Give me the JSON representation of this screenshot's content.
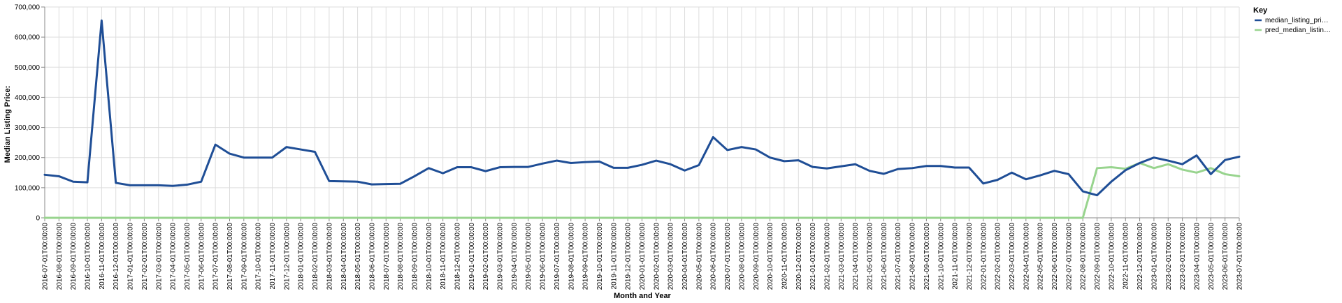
{
  "chart_data": {
    "type": "line",
    "xlabel": "Month and Year",
    "ylabel": "Median Listing Price:",
    "ylim": [
      0,
      700000
    ],
    "y_ticks": [
      "0",
      "100,000",
      "200,000",
      "300,000",
      "400,000",
      "500,000",
      "600,000",
      "700,000"
    ],
    "grid": true,
    "legend": {
      "title": "Key",
      "position": "right",
      "entries": [
        "median_listing_pri…",
        "pred_median_listin…"
      ]
    },
    "categories": [
      "2016-07-01T00:00:00",
      "2016-08-01T00:00:00",
      "2016-09-01T00:00:00",
      "2016-10-01T00:00:00",
      "2016-11-01T00:00:00",
      "2016-12-01T00:00:00",
      "2017-01-01T00:00:00",
      "2017-02-01T00:00:00",
      "2017-03-01T00:00:00",
      "2017-04-01T00:00:00",
      "2017-05-01T00:00:00",
      "2017-06-01T00:00:00",
      "2017-07-01T00:00:00",
      "2017-08-01T00:00:00",
      "2017-09-01T00:00:00",
      "2017-10-01T00:00:00",
      "2017-11-01T00:00:00",
      "2017-12-01T00:00:00",
      "2018-01-01T00:00:00",
      "2018-02-01T00:00:00",
      "2018-03-01T00:00:00",
      "2018-04-01T00:00:00",
      "2018-05-01T00:00:00",
      "2018-06-01T00:00:00",
      "2018-07-01T00:00:00",
      "2018-08-01T00:00:00",
      "2018-09-01T00:00:00",
      "2018-10-01T00:00:00",
      "2018-11-01T00:00:00",
      "2018-12-01T00:00:00",
      "2019-01-01T00:00:00",
      "2019-02-01T00:00:00",
      "2019-03-01T00:00:00",
      "2019-04-01T00:00:00",
      "2019-05-01T00:00:00",
      "2019-06-01T00:00:00",
      "2019-07-01T00:00:00",
      "2019-08-01T00:00:00",
      "2019-09-01T00:00:00",
      "2019-10-01T00:00:00",
      "2019-11-01T00:00:00",
      "2019-12-01T00:00:00",
      "2020-01-01T00:00:00",
      "2020-02-01T00:00:00",
      "2020-03-01T00:00:00",
      "2020-04-01T00:00:00",
      "2020-05-01T00:00:00",
      "2020-06-01T00:00:00",
      "2020-07-01T00:00:00",
      "2020-08-01T00:00:00",
      "2020-09-01T00:00:00",
      "2020-10-01T00:00:00",
      "2020-11-01T00:00:00",
      "2020-12-01T00:00:00",
      "2021-01-01T00:00:00",
      "2021-02-01T00:00:00",
      "2021-03-01T00:00:00",
      "2021-04-01T00:00:00",
      "2021-05-01T00:00:00",
      "2021-06-01T00:00:00",
      "2021-07-01T00:00:00",
      "2021-08-01T00:00:00",
      "2021-09-01T00:00:00",
      "2021-10-01T00:00:00",
      "2021-11-01T00:00:00",
      "2021-12-01T00:00:00",
      "2022-01-01T00:00:00",
      "2022-02-01T00:00:00",
      "2022-03-01T00:00:00",
      "2022-04-01T00:00:00",
      "2022-05-01T00:00:00",
      "2022-06-01T00:00:00",
      "2022-07-01T00:00:00",
      "2022-08-01T00:00:00",
      "2022-09-01T00:00:00",
      "2022-10-01T00:00:00",
      "2022-11-01T00:00:00",
      "2022-12-01T00:00:00",
      "2023-01-01T00:00:00",
      "2023-02-01T00:00:00",
      "2023-03-01T00:00:00",
      "2023-04-01T00:00:00",
      "2023-05-01T00:00:00",
      "2023-06-01T00:00:00",
      "2023-07-01T00:00:00"
    ],
    "series": [
      {
        "name": "median_listing_pri…",
        "color": "#1f4e96",
        "values": [
          143000,
          138000,
          120000,
          118000,
          655000,
          116000,
          108000,
          108000,
          108000,
          106000,
          110000,
          120000,
          243000,
          213000,
          200000,
          200000,
          200000,
          235000,
          227000,
          219000,
          122000,
          121000,
          120000,
          111000,
          112000,
          113000,
          138000,
          165000,
          148000,
          168000,
          168000,
          155000,
          168000,
          169000,
          169000,
          180000,
          190000,
          182000,
          185000,
          187000,
          166000,
          166000,
          176000,
          190000,
          178000,
          157000,
          175000,
          268000,
          225000,
          235000,
          227000,
          200000,
          188000,
          191000,
          169000,
          164000,
          171000,
          178000,
          156000,
          146000,
          162000,
          165000,
          172000,
          172000,
          167000,
          167000,
          114000,
          126000,
          150000,
          128000,
          141000,
          156000,
          145000,
          88000,
          75000,
          120000,
          158000,
          182000,
          200000,
          190000,
          178000,
          207000,
          145000,
          192000,
          203000
        ]
      },
      {
        "name": "pred_median_listin…",
        "color": "#98d48e",
        "values": [
          0,
          0,
          0,
          0,
          0,
          0,
          0,
          0,
          0,
          0,
          0,
          0,
          0,
          0,
          0,
          0,
          0,
          0,
          0,
          0,
          0,
          0,
          0,
          0,
          0,
          0,
          0,
          0,
          0,
          0,
          0,
          0,
          0,
          0,
          0,
          0,
          0,
          0,
          0,
          0,
          0,
          0,
          0,
          0,
          0,
          0,
          0,
          0,
          0,
          0,
          0,
          0,
          0,
          0,
          0,
          0,
          0,
          0,
          0,
          0,
          0,
          0,
          0,
          0,
          0,
          0,
          0,
          0,
          0,
          0,
          0,
          0,
          0,
          0,
          165000,
          168000,
          163000,
          182000,
          165000,
          178000,
          160000,
          150000,
          165000,
          145000,
          138000
        ]
      }
    ]
  }
}
